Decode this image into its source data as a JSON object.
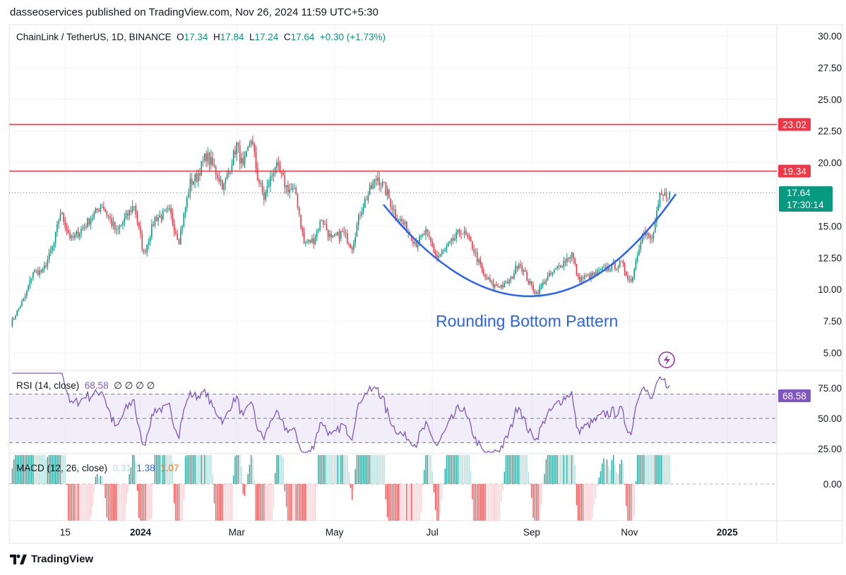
{
  "publisher_line": "dasseoservices published on TradingView.com, Nov 26, 2024 11:59 UTC+5:30",
  "legend": {
    "symbol": "ChainLink / TetherUS, 1D, BINANCE",
    "o_label": "O",
    "o": "17.34",
    "h_label": "H",
    "h": "17.84",
    "l_label": "L",
    "l": "17.24",
    "c_label": "C",
    "c": "17.64",
    "change": "+0.30 (+1.73%)"
  },
  "rsi_legend": {
    "title": "RSI (14, close)",
    "value": "68.58",
    "extras": "∅  ∅  ∅  ∅"
  },
  "macd_legend": {
    "title": "MACD (12, 26, close)",
    "hist": "0.31",
    "macd": "1.38",
    "signal": "1.07"
  },
  "annotation": "Rounding Bottom Pattern",
  "price_badges": {
    "resistance_high": "23.02",
    "resistance_low": "19.34",
    "last": "17.64",
    "countdown": "17:30:14",
    "rsi": "68.58"
  },
  "footer_logo": "TradingView",
  "colors": {
    "up": "#089981",
    "down": "#f23645",
    "line": "#f23645",
    "curve": "#2962ff",
    "rsi": "#7e57c2",
    "macd_line": "#2962ff",
    "signal_line": "#ff6d00"
  },
  "icons": {
    "lightning": "lightning-icon",
    "logo": "tradingview-logo-icon"
  },
  "chart_data": {
    "type": "candlestick",
    "interval": "1D",
    "price_axis": {
      "ticks": [
        "30.00",
        "27.50",
        "25.00",
        "22.50",
        "20.00",
        "15.00",
        "12.50",
        "10.00",
        "7.50",
        "5.00"
      ],
      "range": [
        5,
        30
      ]
    },
    "time_axis": {
      "ticks": [
        {
          "label": "15",
          "date": "2023-11-15"
        },
        {
          "label": "2024",
          "date": "2024-01-01"
        },
        {
          "label": "Mar",
          "date": "2024-03-01"
        },
        {
          "label": "May",
          "date": "2024-05-01"
        },
        {
          "label": "Jul",
          "date": "2024-07-01"
        },
        {
          "label": "Sep",
          "date": "2024-09-01"
        },
        {
          "label": "Nov",
          "date": "2024-11-01"
        },
        {
          "label": "2025",
          "date": "2025-01-01"
        }
      ]
    },
    "horizontal_lines": [
      23.02,
      19.34
    ],
    "last_price": 17.64,
    "close_path": [
      [
        "2023-10-12",
        7.3
      ],
      [
        "2023-10-21",
        9.45
      ],
      [
        "2023-10-26",
        11.4
      ],
      [
        "2023-11-01",
        11.4
      ],
      [
        "2023-11-08",
        13.6
      ],
      [
        "2023-11-12",
        16.1
      ],
      [
        "2023-11-19",
        13.9
      ],
      [
        "2023-11-27",
        15.0
      ],
      [
        "2023-12-08",
        16.7
      ],
      [
        "2023-12-17",
        14.5
      ],
      [
        "2023-12-28",
        16.7
      ],
      [
        "2024-01-03",
        12.8
      ],
      [
        "2024-01-10",
        15.6
      ],
      [
        "2024-01-19",
        16.1
      ],
      [
        "2024-01-25",
        13.9
      ],
      [
        "2024-02-01",
        18.4
      ],
      [
        "2024-02-05",
        18.9
      ],
      [
        "2024-02-11",
        20.6
      ],
      [
        "2024-02-16",
        19.5
      ],
      [
        "2024-02-22",
        18.1
      ],
      [
        "2024-03-01",
        21.4
      ],
      [
        "2024-03-05",
        19.5
      ],
      [
        "2024-03-10",
        22.0
      ],
      [
        "2024-03-14",
        18.9
      ],
      [
        "2024-03-18",
        17.2
      ],
      [
        "2024-03-25",
        19.8
      ],
      [
        "2024-04-01",
        18.1
      ],
      [
        "2024-04-07",
        17.5
      ],
      [
        "2024-04-12",
        13.6
      ],
      [
        "2024-04-18",
        13.9
      ],
      [
        "2024-04-23",
        15.6
      ],
      [
        "2024-04-29",
        13.9
      ],
      [
        "2024-05-06",
        14.5
      ],
      [
        "2024-05-12",
        13.4
      ],
      [
        "2024-05-17",
        16.1
      ],
      [
        "2024-05-23",
        17.8
      ],
      [
        "2024-05-28",
        18.9
      ],
      [
        "2024-06-03",
        17.5
      ],
      [
        "2024-06-08",
        15.9
      ],
      [
        "2024-06-14",
        15.0
      ],
      [
        "2024-06-21",
        13.6
      ],
      [
        "2024-06-27",
        14.5
      ],
      [
        "2024-07-04",
        12.5
      ],
      [
        "2024-07-11",
        13.4
      ],
      [
        "2024-07-19",
        14.7
      ],
      [
        "2024-07-26",
        13.4
      ],
      [
        "2024-08-02",
        11.1
      ],
      [
        "2024-08-08",
        10.3
      ],
      [
        "2024-08-15",
        10.3
      ],
      [
        "2024-08-19",
        10.8
      ],
      [
        "2024-08-24",
        12.2
      ],
      [
        "2024-08-30",
        10.6
      ],
      [
        "2024-09-04",
        9.7
      ],
      [
        "2024-09-10",
        10.8
      ],
      [
        "2024-09-17",
        11.7
      ],
      [
        "2024-09-26",
        12.8
      ],
      [
        "2024-09-30",
        10.8
      ],
      [
        "2024-10-09",
        11.1
      ],
      [
        "2024-10-18",
        11.7
      ],
      [
        "2024-10-27",
        12.0
      ],
      [
        "2024-11-02",
        10.6
      ],
      [
        "2024-11-09",
        14.5
      ],
      [
        "2024-11-15",
        13.9
      ],
      [
        "2024-11-20",
        17.2
      ],
      [
        "2024-11-26",
        17.64
      ]
    ],
    "rsi": {
      "levels": [
        70,
        50,
        30
      ],
      "ticks": [
        "75.00",
        "50.00",
        "25.00"
      ],
      "last": 68.58
    },
    "macd": {
      "ticks": [
        "0.00"
      ],
      "hist": 0.31,
      "macd": 1.38,
      "signal": 1.07
    }
  }
}
